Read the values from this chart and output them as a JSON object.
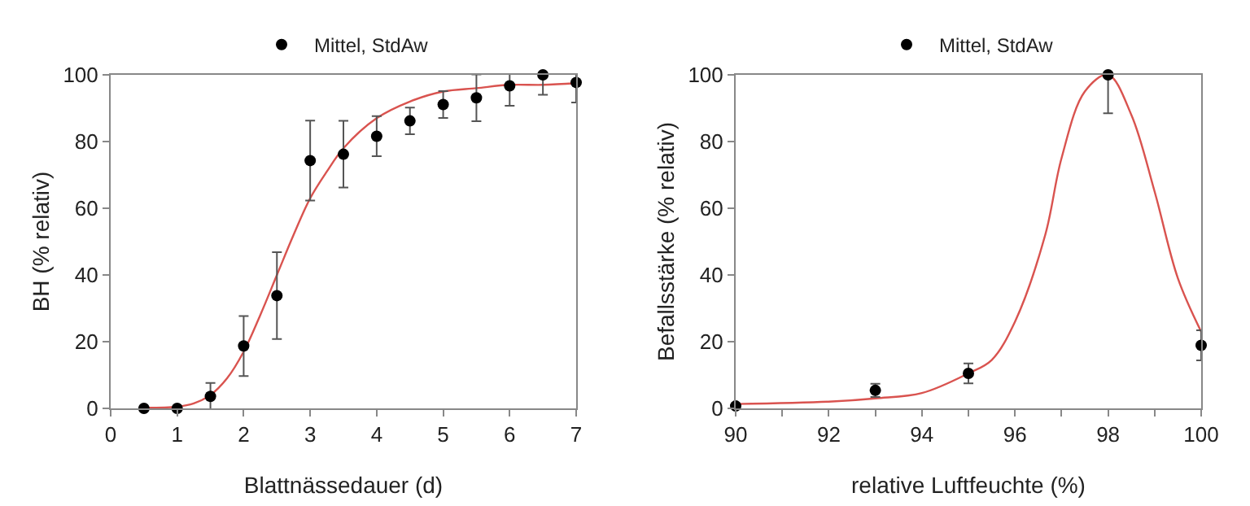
{
  "chart_data": [
    {
      "type": "scatter",
      "xlabel": "Blattnässedauer (d)",
      "ylabel": "BH (% relativ)",
      "xlim": [
        0,
        7
      ],
      "xticks": [
        0,
        1,
        2,
        3,
        4,
        5,
        6,
        7
      ],
      "ylim": [
        0,
        100
      ],
      "yticks": [
        0,
        20,
        40,
        60,
        80,
        100
      ],
      "grid": false,
      "legend": "top",
      "series": [
        {
          "name": "Mittel, StdAw",
          "color": "#000000",
          "marker": "circle",
          "x": [
            0.5,
            1,
            1.5,
            2,
            2.5,
            3,
            3.5,
            4,
            4.5,
            5,
            5.5,
            6,
            6.5,
            7
          ],
          "values": [
            0,
            0,
            3.6,
            18.7,
            33.8,
            74.3,
            76.2,
            81.6,
            86.2,
            91.1,
            93.1,
            96.7,
            100,
            97.7
          ],
          "errors": [
            null,
            null,
            4,
            9,
            13,
            12,
            10,
            6,
            4,
            4,
            7,
            6,
            6,
            6
          ]
        },
        {
          "type": "line",
          "color": "#d9534f",
          "marker": "none",
          "x": [
            0.5,
            1,
            1.25,
            1.5,
            1.75,
            2,
            2.25,
            2.5,
            2.75,
            3,
            3.25,
            3.5,
            4,
            4.5,
            5,
            5.5,
            6,
            6.5,
            7
          ],
          "values": [
            0.2,
            0.5,
            1.5,
            4,
            9,
            17,
            28,
            40,
            52,
            63,
            71,
            78,
            87,
            92,
            95,
            96,
            97,
            97,
            97.5
          ]
        }
      ]
    },
    {
      "type": "scatter",
      "xlabel": "relative Luftfeuchte (%)",
      "ylabel": "Befallsstärke (% relativ)",
      "xlim": [
        90,
        100
      ],
      "xticks": [
        90,
        {
          "value": 91,
          "label": null
        },
        92,
        {
          "value": 93,
          "label": null
        },
        94,
        {
          "value": 95,
          "label": null
        },
        96,
        {
          "value": 97,
          "label": null
        },
        98,
        {
          "value": 99,
          "label": null
        },
        100
      ],
      "ylim": [
        0,
        100
      ],
      "yticks": [
        0,
        20,
        40,
        60,
        80,
        100
      ],
      "grid": false,
      "legend": "top",
      "series": [
        {
          "name": "Mittel, StdAw",
          "color": "#000000",
          "marker": "circle",
          "x": [
            90,
            93,
            95,
            98,
            100
          ],
          "values": [
            0.7,
            5.4,
            10.5,
            100,
            18.9
          ],
          "errors": [
            null,
            2,
            3,
            11.5,
            4.5
          ]
        },
        {
          "type": "line",
          "color": "#d9534f",
          "marker": "none",
          "x": [
            90,
            92,
            93,
            94,
            95,
            95.5,
            96,
            96.65,
            97,
            97.5,
            98,
            98.5,
            99,
            99.5,
            100
          ],
          "values": [
            1.3,
            2,
            3,
            4.6,
            10.5,
            14.5,
            26,
            52,
            75,
            95,
            100,
            88,
            65,
            39,
            23
          ]
        }
      ]
    }
  ]
}
